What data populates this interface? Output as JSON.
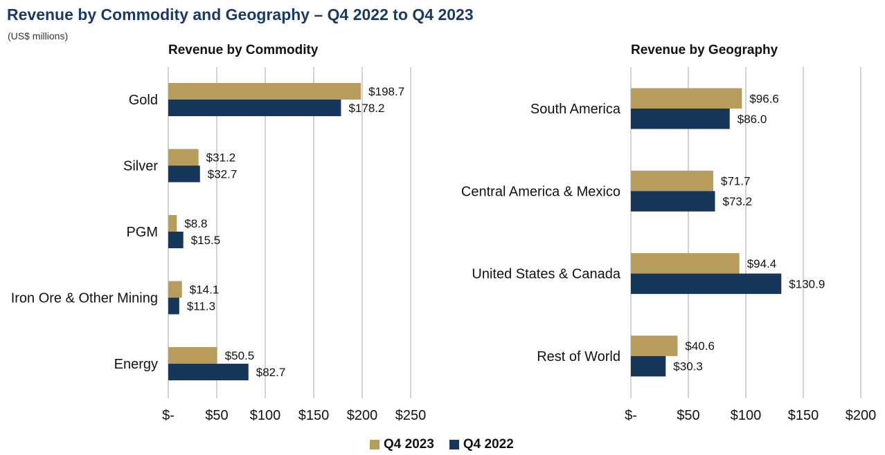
{
  "title": "Revenue by Commodity and Geography – Q4 2022 to Q4 2023",
  "subtitle": "(US$ millions)",
  "colors": {
    "q4_2023": "#b89c5b",
    "q4_2022": "#16365c",
    "grid": "#a6a6a6"
  },
  "legend": [
    {
      "label": "Q4 2023",
      "color": "#b89c5b"
    },
    {
      "label": "Q4 2022",
      "color": "#16365c"
    }
  ],
  "chart_data": [
    {
      "type": "bar",
      "orientation": "horizontal",
      "title": "Revenue by Commodity",
      "categories": [
        "Gold",
        "Silver",
        "PGM",
        "Iron Ore & Other Mining",
        "Energy"
      ],
      "series": [
        {
          "name": "Q4 2023",
          "values": [
            198.7,
            31.2,
            8.8,
            14.1,
            50.5
          ],
          "labels": [
            "$198.7",
            "$31.2",
            "$8.8",
            "$14.1",
            "$50.5"
          ]
        },
        {
          "name": "Q4 2022",
          "values": [
            178.2,
            32.7,
            15.5,
            11.3,
            82.7
          ],
          "labels": [
            "$178.2",
            "$32.7",
            "$15.5",
            "$11.3",
            "$82.7"
          ]
        }
      ],
      "xlim": [
        0,
        250
      ],
      "ticks": [
        0,
        50,
        100,
        150,
        200,
        250
      ],
      "tick_labels": [
        "$-",
        "$50",
        "$100",
        "$150",
        "$200",
        "$250"
      ],
      "grid": true
    },
    {
      "type": "bar",
      "orientation": "horizontal",
      "title": "Revenue by Geography",
      "categories": [
        "South America",
        "Central America & Mexico",
        "United States & Canada",
        "Rest of World"
      ],
      "series": [
        {
          "name": "Q4 2023",
          "values": [
            96.6,
            71.7,
            94.4,
            40.6
          ],
          "labels": [
            "$96.6",
            "$71.7",
            "$94.4",
            "$40.6"
          ]
        },
        {
          "name": "Q4 2022",
          "values": [
            86.0,
            73.2,
            130.9,
            30.3
          ],
          "labels": [
            "$86.0",
            "$73.2",
            "$130.9",
            "$30.3"
          ]
        }
      ],
      "xlim": [
        0,
        200
      ],
      "ticks": [
        0,
        50,
        100,
        150,
        200
      ],
      "tick_labels": [
        "$-",
        "$50",
        "$100",
        "$150",
        "$200"
      ],
      "grid": true
    }
  ]
}
